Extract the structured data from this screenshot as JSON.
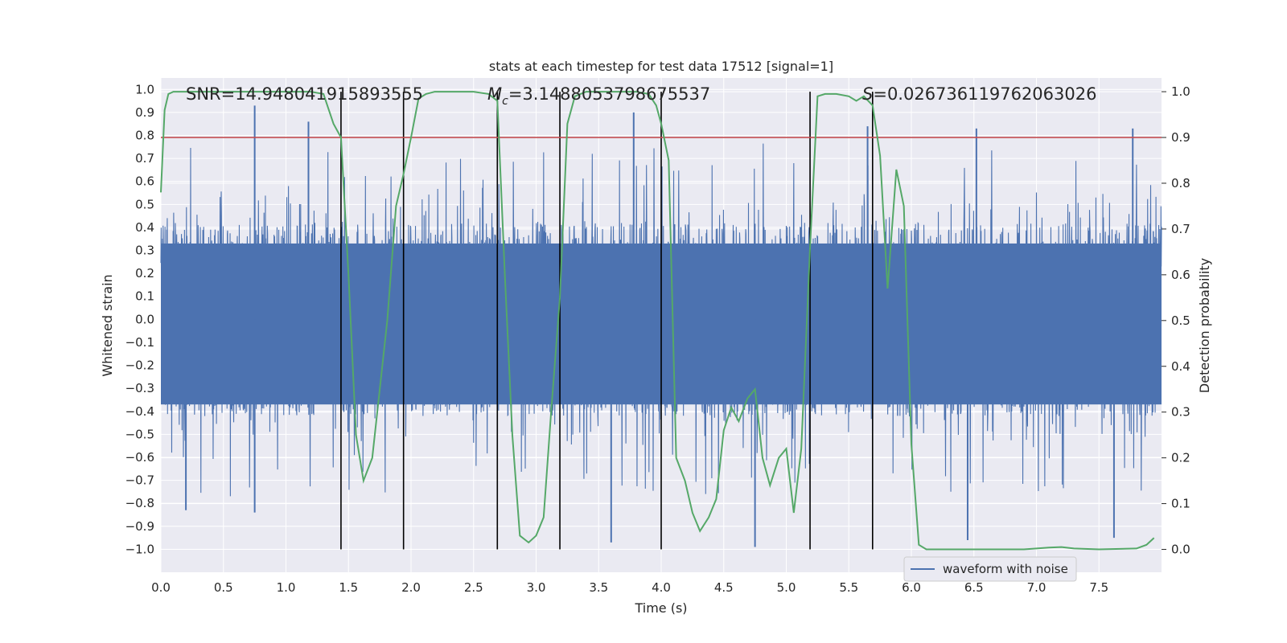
{
  "chart_data": {
    "type": "line",
    "title": "stats at each timestep for test data 17512 [signal=1]",
    "xlabel": "Time (s)",
    "ylabel": "Whitened strain",
    "y2label": "Detection probability",
    "xlim": [
      0,
      8
    ],
    "ylim": [
      -1.1,
      1.05
    ],
    "y2lim": [
      -0.05,
      1.03
    ],
    "xticks": [
      0.0,
      0.5,
      1.0,
      1.5,
      2.0,
      2.5,
      3.0,
      3.5,
      4.0,
      4.5,
      5.0,
      5.5,
      6.0,
      6.5,
      7.0,
      7.5
    ],
    "xtick_labels": [
      "0.0",
      "0.5",
      "1.0",
      "1.5",
      "2.0",
      "2.5",
      "3.0",
      "3.5",
      "4.0",
      "4.5",
      "5.0",
      "5.5",
      "6.0",
      "6.5",
      "7.0",
      "7.5"
    ],
    "yticks": [
      1.0,
      0.9,
      0.8,
      0.7,
      0.6,
      0.5,
      0.4,
      0.3,
      0.2,
      0.1,
      0.0,
      -0.1,
      -0.2,
      -0.3,
      -0.4,
      -0.5,
      -0.6,
      -0.7,
      -0.8,
      -0.9,
      -1.0
    ],
    "ytick_labels": [
      "1.0",
      "0.9",
      "0.8",
      "0.7",
      "0.6",
      "0.5",
      "0.4",
      "0.3",
      "0.2",
      "0.1",
      "0.0",
      "−0.1",
      "−0.2",
      "−0.3",
      "−0.4",
      "−0.5",
      "−0.6",
      "−0.7",
      "−0.8",
      "−0.9",
      "−1.0"
    ],
    "y2ticks": [
      1.0,
      0.9,
      0.8,
      0.7,
      0.6,
      0.5,
      0.4,
      0.3,
      0.2,
      0.1,
      0.0
    ],
    "y2tick_labels": [
      "1.0",
      "0.9",
      "0.8",
      "0.7",
      "0.6",
      "0.5",
      "0.4",
      "0.3",
      "0.2",
      "0.1",
      "0.0"
    ],
    "grid": true,
    "legend_position": "lower-right",
    "annotations": {
      "snr": "SNR=14.948041915893555",
      "mc_symbol": "M",
      "mc_sub": "c",
      "mc_value": "=3.1488053798675537",
      "s_symbol": "S",
      "s_value": "=0.026736119762063026"
    },
    "threshold_y": 0.9,
    "vertical_markers_x": [
      1.44,
      1.94,
      2.69,
      3.19,
      4.0,
      5.19,
      5.69
    ],
    "series": [
      {
        "name": "waveform with noise",
        "kind": "noise",
        "color": "#4c72b0",
        "core_amplitude": 0.42,
        "notable_peaks": [
          {
            "x": 0.75,
            "y": 0.93
          },
          {
            "x": 1.18,
            "y": 0.86
          },
          {
            "x": 3.78,
            "y": 0.9
          },
          {
            "x": 5.65,
            "y": 0.84
          },
          {
            "x": 6.52,
            "y": 0.83
          },
          {
            "x": 7.77,
            "y": 0.83
          }
        ],
        "notable_troughs": [
          {
            "x": 0.2,
            "y": -0.83
          },
          {
            "x": 0.75,
            "y": -0.84
          },
          {
            "x": 3.6,
            "y": -0.97
          },
          {
            "x": 4.75,
            "y": -0.99
          },
          {
            "x": 6.45,
            "y": -0.96
          },
          {
            "x": 7.62,
            "y": -0.95
          }
        ]
      },
      {
        "kind": "probability",
        "color": "#55a868",
        "axis": "right",
        "x": [
          0.0,
          0.03,
          0.06,
          0.1,
          0.2,
          0.4,
          0.6,
          0.8,
          1.0,
          1.2,
          1.3,
          1.38,
          1.44,
          1.5,
          1.56,
          1.62,
          1.69,
          1.75,
          1.81,
          1.88,
          1.94,
          2.0,
          2.06,
          2.12,
          2.19,
          2.3,
          2.4,
          2.5,
          2.62,
          2.69,
          2.75,
          2.81,
          2.87,
          2.94,
          3.0,
          3.06,
          3.12,
          3.19,
          3.25,
          3.31,
          3.4,
          3.6,
          3.8,
          3.9,
          3.96,
          4.0,
          4.06,
          4.12,
          4.19,
          4.25,
          4.31,
          4.38,
          4.44,
          4.5,
          4.56,
          4.62,
          4.69,
          4.75,
          4.81,
          4.87,
          4.94,
          5.0,
          5.06,
          5.12,
          5.19,
          5.25,
          5.31,
          5.4,
          5.5,
          5.56,
          5.62,
          5.69,
          5.75,
          5.81,
          5.88,
          5.94,
          6.0,
          6.06,
          6.12,
          6.3,
          6.6,
          6.9,
          7.0,
          7.1,
          7.2,
          7.3,
          7.5,
          7.8,
          7.88,
          7.94
        ],
        "values": [
          0.78,
          0.96,
          0.995,
          1.0,
          1.0,
          1.0,
          1.0,
          1.0,
          1.0,
          1.0,
          0.995,
          0.93,
          0.9,
          0.6,
          0.25,
          0.15,
          0.2,
          0.35,
          0.5,
          0.75,
          0.82,
          0.9,
          0.985,
          0.995,
          1.0,
          1.0,
          1.0,
          1.0,
          0.995,
          0.98,
          0.6,
          0.25,
          0.03,
          0.015,
          0.03,
          0.07,
          0.3,
          0.55,
          0.93,
          0.99,
          1.0,
          1.0,
          1.0,
          0.995,
          0.97,
          0.93,
          0.85,
          0.2,
          0.15,
          0.08,
          0.04,
          0.07,
          0.11,
          0.26,
          0.31,
          0.28,
          0.33,
          0.35,
          0.2,
          0.14,
          0.2,
          0.22,
          0.08,
          0.22,
          0.66,
          0.99,
          0.995,
          0.995,
          0.99,
          0.98,
          0.99,
          0.97,
          0.86,
          0.57,
          0.83,
          0.75,
          0.23,
          0.01,
          0.0,
          0.0,
          0.0,
          0.0,
          0.002,
          0.004,
          0.005,
          0.002,
          0.0,
          0.002,
          0.01,
          0.025
        ]
      }
    ]
  }
}
